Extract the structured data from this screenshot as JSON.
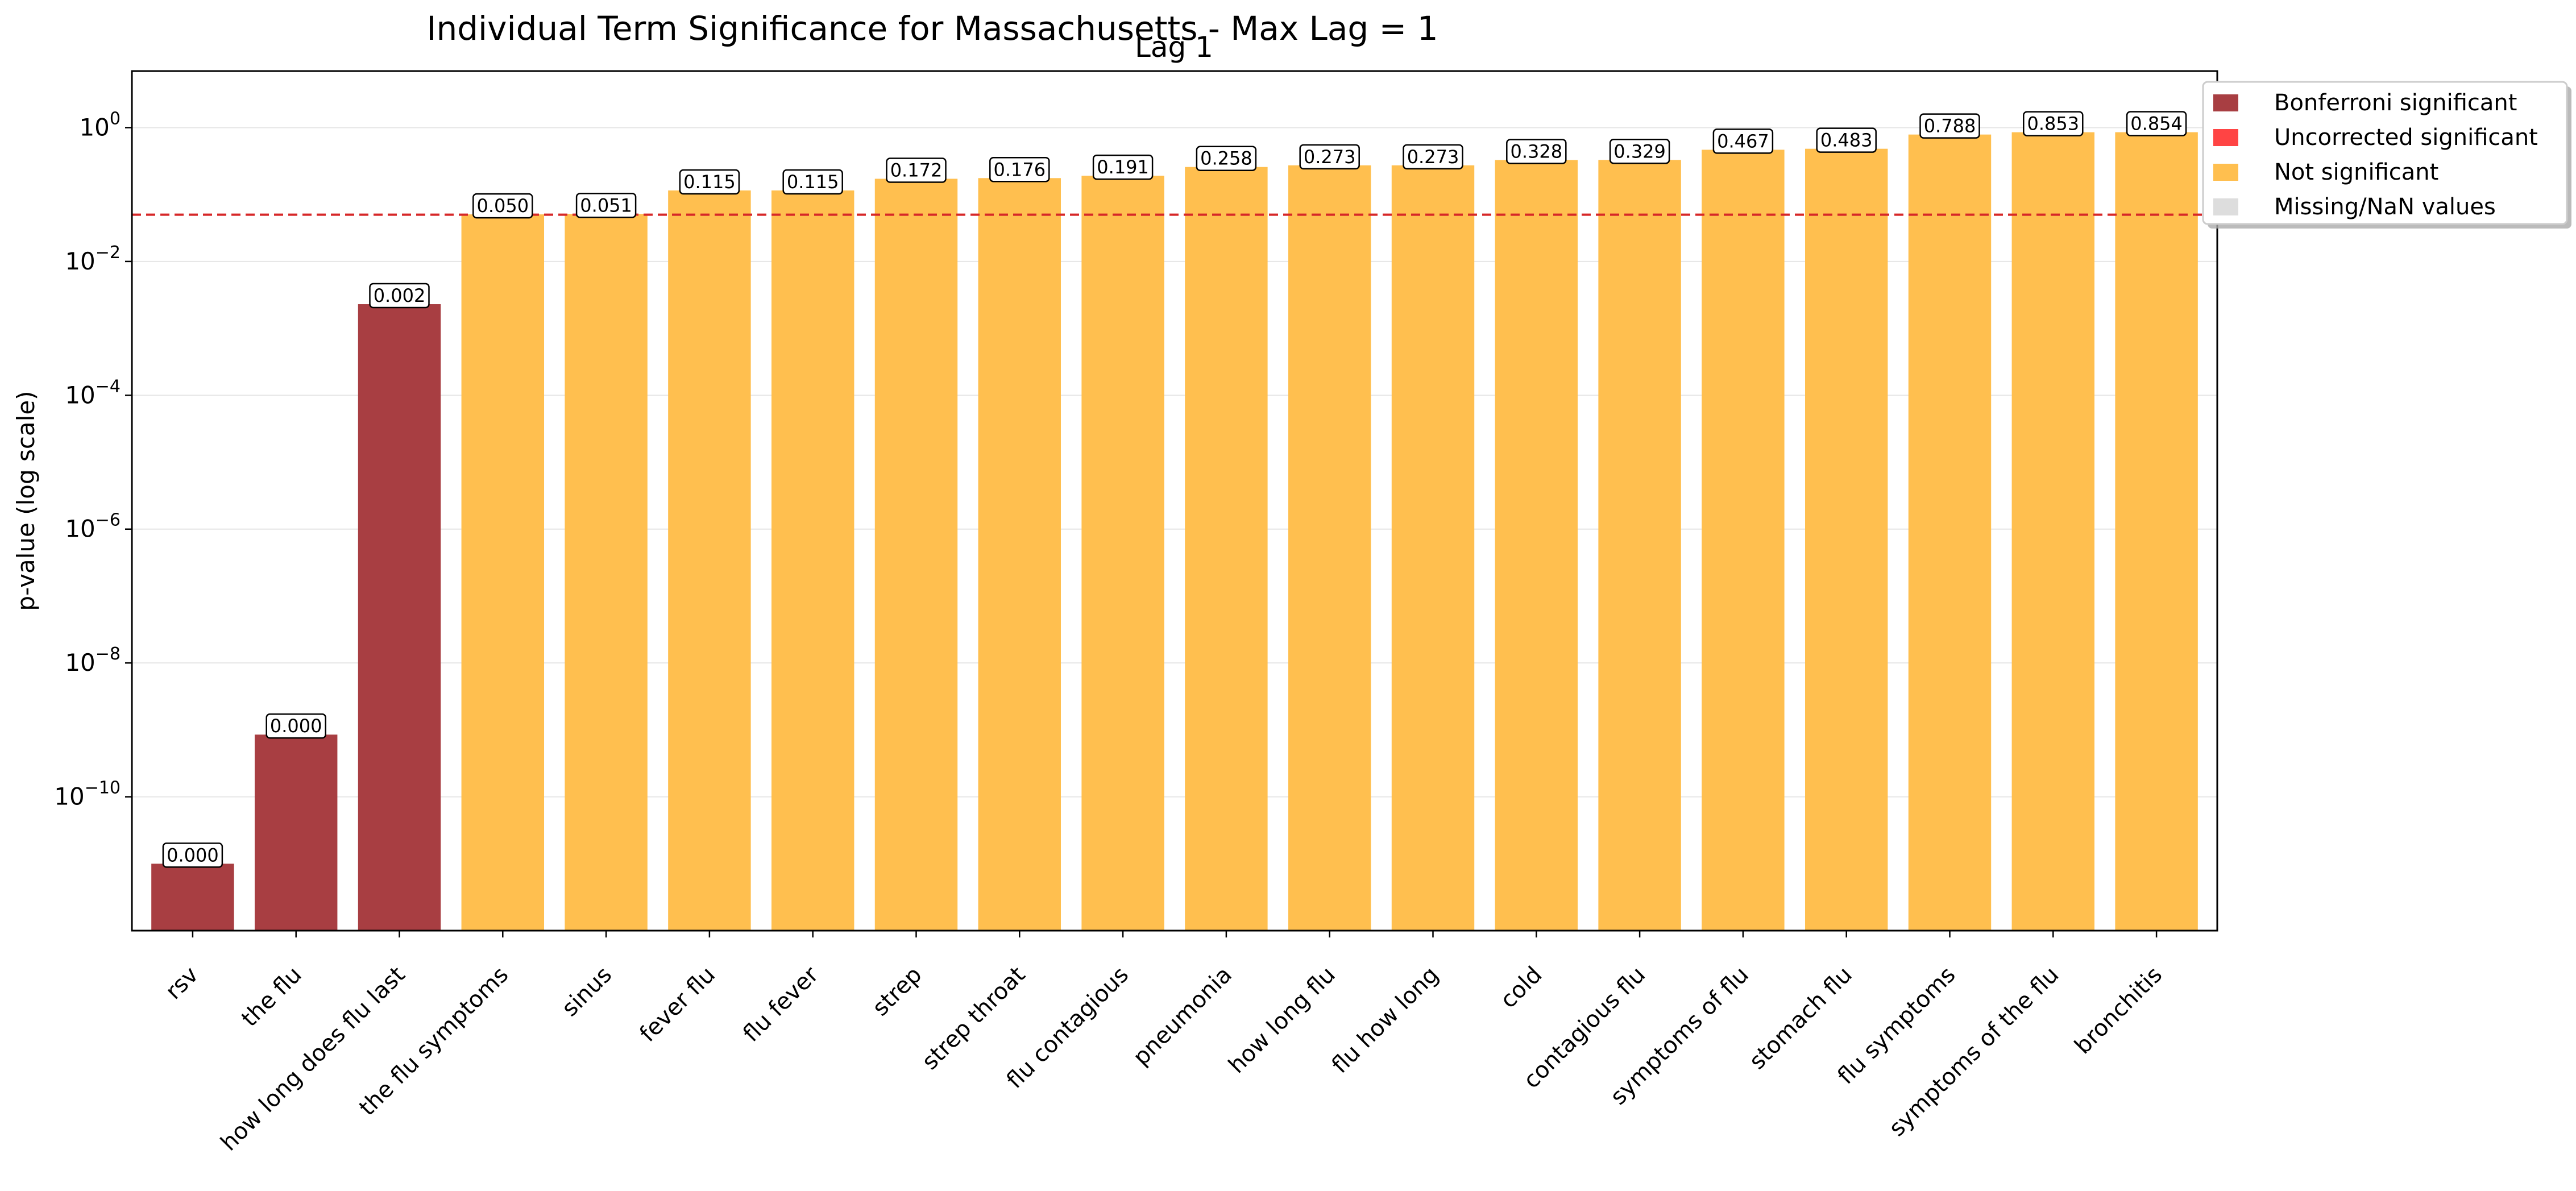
{
  "chart_data": {
    "type": "bar",
    "title": "Individual Term Significance for Massachusetts - Max Lag = 1",
    "subtitle": "Lag 1",
    "xlabel": "",
    "ylabel": "p-value (log scale)",
    "yscale": "log",
    "ylim": [
      1e-12,
      7
    ],
    "yticks": [
      {
        "base": "10",
        "exp": "0",
        "value": 1
      },
      {
        "base": "10",
        "exp": "−2",
        "value": 0.01
      },
      {
        "base": "10",
        "exp": "−4",
        "value": 0.0001
      },
      {
        "base": "10",
        "exp": "−6",
        "value": 1e-06
      },
      {
        "base": "10",
        "exp": "−8",
        "value": 1e-08
      },
      {
        "base": "10",
        "exp": "−10",
        "value": 1e-10
      }
    ],
    "grid": true,
    "threshold": 0.05,
    "threshold_color": "#d62728",
    "legend_position": "upper-right (outside)",
    "legend": [
      {
        "label": "Bonferroni significant",
        "color": "#a83e42"
      },
      {
        "label": "Uncorrected significant",
        "color": "#ff4444"
      },
      {
        "label": "Not significant",
        "color": "#ffbf4f"
      },
      {
        "label": "Missing/NaN values",
        "color": "#dddddd"
      }
    ],
    "categories": [
      "rsv",
      "the flu",
      "how long does flu last",
      "the flu symptoms",
      "sinus",
      "fever flu",
      "flu fever",
      "strep",
      "strep throat",
      "flu contagious",
      "pneumonia",
      "how long flu",
      "flu how long",
      "cold",
      "contagious flu",
      "symptoms of flu",
      "stomach flu",
      "flu symptoms",
      "symptoms of the flu",
      "bronchitis"
    ],
    "values": [
      1e-11,
      8.5e-10,
      0.0023,
      0.0505,
      0.0512,
      0.115,
      0.115,
      0.172,
      0.176,
      0.191,
      0.258,
      0.273,
      0.273,
      0.328,
      0.329,
      0.467,
      0.483,
      0.788,
      0.853,
      0.854
    ],
    "labels": [
      "0.000",
      "0.000",
      "0.002",
      "0.050",
      "0.051",
      "0.115",
      "0.115",
      "0.172",
      "0.176",
      "0.191",
      "0.258",
      "0.273",
      "0.273",
      "0.328",
      "0.329",
      "0.467",
      "0.483",
      "0.788",
      "0.853",
      "0.854"
    ],
    "colors": [
      "#a83e42",
      "#a83e42",
      "#a83e42",
      "#ffbf4f",
      "#ffbf4f",
      "#ffbf4f",
      "#ffbf4f",
      "#ffbf4f",
      "#ffbf4f",
      "#ffbf4f",
      "#ffbf4f",
      "#ffbf4f",
      "#ffbf4f",
      "#ffbf4f",
      "#ffbf4f",
      "#ffbf4f",
      "#ffbf4f",
      "#ffbf4f",
      "#ffbf4f",
      "#ffbf4f"
    ]
  }
}
